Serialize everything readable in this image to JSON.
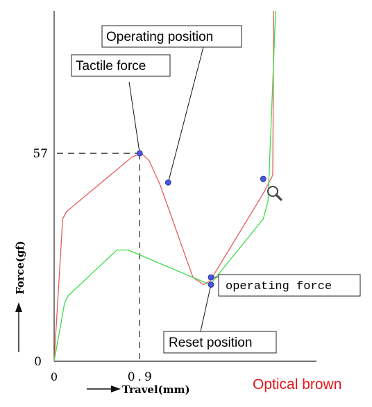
{
  "chart_data": {
    "type": "line",
    "title": "Optical brown",
    "title_color": "#e8161a",
    "xlabel": "Travel(mm)",
    "ylabel": "Force(gf)",
    "x_ticks": [
      {
        "value": 0,
        "label": "0"
      },
      {
        "value": 0.9,
        "label": "0.9"
      }
    ],
    "y_ticks": [
      {
        "value": 0,
        "label": "0"
      },
      {
        "value": 57,
        "label": "57"
      }
    ],
    "xlim": [
      0,
      2.76
    ],
    "ylim": [
      0,
      96
    ],
    "grid": false,
    "series": [
      {
        "role": "press",
        "color": "#e85a5a",
        "x": [
          0,
          0.09,
          0.13,
          0.82,
          0.92,
          1.0,
          1.12,
          1.46,
          1.57,
          1.64,
          2.2,
          2.3,
          2.31
        ],
        "y": [
          0,
          39,
          41,
          56,
          57,
          55,
          48,
          23,
          21,
          22,
          46,
          51,
          96
        ]
      },
      {
        "role": "release",
        "color": "#3cdc46",
        "x": [
          0,
          0.11,
          0.15,
          0.66,
          0.78,
          1.64,
          2.2,
          2.25,
          2.33
        ],
        "y": [
          0,
          16,
          18,
          30.5,
          30.5,
          21,
          39,
          44,
          96
        ]
      }
    ],
    "points": [
      {
        "name": "tactile-force-point",
        "x": 0.9,
        "y": 57
      },
      {
        "name": "operating-position-point",
        "x": 1.2,
        "y": 49
      },
      {
        "name": "operating-force-point",
        "x": 1.65,
        "y": 23
      },
      {
        "name": "release-point-right",
        "x": 2.2,
        "y": 50
      },
      {
        "name": "reset-position-point",
        "x": 1.65,
        "y": 21
      }
    ],
    "reference_lines": {
      "x": 0.9,
      "y": 57
    },
    "annotations": [
      {
        "key": "operating_position",
        "text": "Operating position",
        "target": "operating-position-point"
      },
      {
        "key": "tactile_force",
        "text": "Tactile force",
        "target": "tactile-force-point"
      },
      {
        "key": "operating_force",
        "text": "operating force",
        "target": "operating-force-point"
      },
      {
        "key": "reset_position",
        "text": "Reset position",
        "target": "reset-position-point"
      }
    ],
    "marker_color": "#4a55e0",
    "magnifier_icon": "magnifier-icon"
  }
}
